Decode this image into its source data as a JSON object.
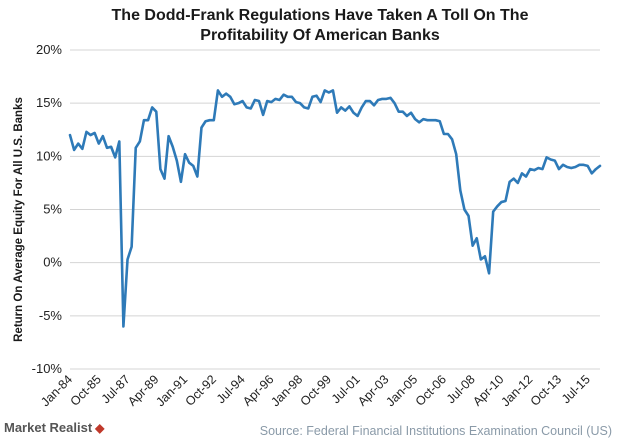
{
  "title_line1": "The Dodd-Frank Regulations Have Taken A Toll On The",
  "title_line2": "Profitability Of American Banks",
  "footer": {
    "brand": "Market Realist",
    "source": "Source: Federal Financial Institutions Examination Council (US)"
  },
  "chart_data": {
    "type": "line",
    "title": "The Dodd-Frank Regulations Have Taken A Toll On The Profitability Of American Banks",
    "xlabel": "",
    "ylabel": "Return On Average Equity For All U.S. Banks",
    "ylim": [
      -10,
      20
    ],
    "yticks": [
      -10,
      -5,
      0,
      5,
      10,
      15,
      20
    ],
    "ytick_labels": [
      "-10%",
      "-5%",
      "0%",
      "5%",
      "10%",
      "15%",
      "20%"
    ],
    "xticks": [
      {
        "t": 1984.0,
        "label": "Jan-84"
      },
      {
        "t": 1985.75,
        "label": "Oct-85"
      },
      {
        "t": 1987.5,
        "label": "Jul-87"
      },
      {
        "t": 1989.25,
        "label": "Apr-89"
      },
      {
        "t": 1991.0,
        "label": "Jan-91"
      },
      {
        "t": 1992.75,
        "label": "Oct-92"
      },
      {
        "t": 1994.5,
        "label": "Jul-94"
      },
      {
        "t": 1996.25,
        "label": "Apr-96"
      },
      {
        "t": 1998.0,
        "label": "Jan-98"
      },
      {
        "t": 1999.75,
        "label": "Oct-99"
      },
      {
        "t": 2001.5,
        "label": "Jul-01"
      },
      {
        "t": 2003.25,
        "label": "Apr-03"
      },
      {
        "t": 2005.0,
        "label": "Jan-05"
      },
      {
        "t": 2006.75,
        "label": "Oct-06"
      },
      {
        "t": 2008.5,
        "label": "Jul-08"
      },
      {
        "t": 2010.25,
        "label": "Apr-10"
      },
      {
        "t": 2012.0,
        "label": "Jan-12"
      },
      {
        "t": 2013.75,
        "label": "Oct-13"
      },
      {
        "t": 2015.5,
        "label": "Jul-15"
      }
    ],
    "xlim": [
      1984.0,
      2016.25
    ],
    "grid": true,
    "series": [
      {
        "name": "",
        "color": "#2e7ab8",
        "points": [
          [
            1984.0,
            12.0
          ],
          [
            1984.25,
            10.6
          ],
          [
            1984.5,
            11.2
          ],
          [
            1984.75,
            10.7
          ],
          [
            1985.0,
            12.3
          ],
          [
            1985.25,
            12.0
          ],
          [
            1985.5,
            12.2
          ],
          [
            1985.75,
            11.2
          ],
          [
            1986.0,
            11.9
          ],
          [
            1986.25,
            10.8
          ],
          [
            1986.5,
            10.9
          ],
          [
            1986.75,
            9.9
          ],
          [
            1987.0,
            11.4
          ],
          [
            1987.25,
            -6.0
          ],
          [
            1987.5,
            0.3
          ],
          [
            1987.75,
            1.5
          ],
          [
            1988.0,
            10.8
          ],
          [
            1988.25,
            11.4
          ],
          [
            1988.5,
            13.4
          ],
          [
            1988.75,
            13.4
          ],
          [
            1989.0,
            14.6
          ],
          [
            1989.25,
            14.2
          ],
          [
            1989.5,
            8.8
          ],
          [
            1989.75,
            7.9
          ],
          [
            1990.0,
            11.9
          ],
          [
            1990.25,
            10.9
          ],
          [
            1990.5,
            9.6
          ],
          [
            1990.75,
            7.6
          ],
          [
            1991.0,
            10.2
          ],
          [
            1991.25,
            9.4
          ],
          [
            1991.5,
            9.1
          ],
          [
            1991.75,
            8.1
          ],
          [
            1992.0,
            12.7
          ],
          [
            1992.25,
            13.3
          ],
          [
            1992.5,
            13.4
          ],
          [
            1992.75,
            13.4
          ],
          [
            1993.0,
            16.2
          ],
          [
            1993.25,
            15.6
          ],
          [
            1993.5,
            15.9
          ],
          [
            1993.75,
            15.6
          ],
          [
            1994.0,
            14.9
          ],
          [
            1994.25,
            15.0
          ],
          [
            1994.5,
            15.2
          ],
          [
            1994.75,
            14.6
          ],
          [
            1995.0,
            14.5
          ],
          [
            1995.25,
            15.3
          ],
          [
            1995.5,
            15.2
          ],
          [
            1995.75,
            13.9
          ],
          [
            1996.0,
            15.2
          ],
          [
            1996.25,
            15.1
          ],
          [
            1996.5,
            15.4
          ],
          [
            1996.75,
            15.3
          ],
          [
            1997.0,
            15.8
          ],
          [
            1997.25,
            15.6
          ],
          [
            1997.5,
            15.6
          ],
          [
            1997.75,
            15.1
          ],
          [
            1998.0,
            15.0
          ],
          [
            1998.25,
            14.6
          ],
          [
            1998.5,
            14.5
          ],
          [
            1998.75,
            15.6
          ],
          [
            1999.0,
            15.7
          ],
          [
            1999.25,
            15.1
          ],
          [
            1999.5,
            16.2
          ],
          [
            1999.75,
            16.0
          ],
          [
            2000.0,
            16.2
          ],
          [
            2000.25,
            14.1
          ],
          [
            2000.5,
            14.6
          ],
          [
            2000.75,
            14.3
          ],
          [
            2001.0,
            14.7
          ],
          [
            2001.25,
            14.1
          ],
          [
            2001.5,
            13.8
          ],
          [
            2001.75,
            14.6
          ],
          [
            2002.0,
            15.2
          ],
          [
            2002.25,
            15.2
          ],
          [
            2002.5,
            14.8
          ],
          [
            2002.75,
            15.3
          ],
          [
            2003.0,
            15.4
          ],
          [
            2003.25,
            15.4
          ],
          [
            2003.5,
            15.5
          ],
          [
            2003.75,
            15.0
          ],
          [
            2004.0,
            14.2
          ],
          [
            2004.25,
            14.2
          ],
          [
            2004.5,
            13.8
          ],
          [
            2004.75,
            14.1
          ],
          [
            2005.0,
            13.5
          ],
          [
            2005.25,
            13.2
          ],
          [
            2005.5,
            13.5
          ],
          [
            2005.75,
            13.4
          ],
          [
            2006.0,
            13.4
          ],
          [
            2006.25,
            13.4
          ],
          [
            2006.5,
            13.3
          ],
          [
            2006.75,
            12.1
          ],
          [
            2007.0,
            12.1
          ],
          [
            2007.25,
            11.6
          ],
          [
            2007.5,
            10.2
          ],
          [
            2007.75,
            6.8
          ],
          [
            2008.0,
            5.0
          ],
          [
            2008.25,
            4.4
          ],
          [
            2008.5,
            1.6
          ],
          [
            2008.75,
            2.3
          ],
          [
            2009.0,
            0.3
          ],
          [
            2009.25,
            0.6
          ],
          [
            2009.5,
            -1.0
          ],
          [
            2009.75,
            4.8
          ],
          [
            2010.0,
            5.3
          ],
          [
            2010.25,
            5.7
          ],
          [
            2010.5,
            5.8
          ],
          [
            2010.75,
            7.6
          ],
          [
            2011.0,
            7.9
          ],
          [
            2011.25,
            7.5
          ],
          [
            2011.5,
            8.4
          ],
          [
            2011.75,
            8.1
          ],
          [
            2012.0,
            8.8
          ],
          [
            2012.25,
            8.7
          ],
          [
            2012.5,
            8.9
          ],
          [
            2012.75,
            8.8
          ],
          [
            2013.0,
            9.9
          ],
          [
            2013.25,
            9.7
          ],
          [
            2013.5,
            9.6
          ],
          [
            2013.75,
            8.8
          ],
          [
            2014.0,
            9.2
          ],
          [
            2014.25,
            9.0
          ],
          [
            2014.5,
            8.9
          ],
          [
            2014.75,
            9.0
          ],
          [
            2015.0,
            9.2
          ],
          [
            2015.25,
            9.2
          ],
          [
            2015.5,
            9.1
          ],
          [
            2015.75,
            8.4
          ],
          [
            2016.0,
            8.8
          ],
          [
            2016.25,
            9.1
          ]
        ]
      }
    ]
  }
}
